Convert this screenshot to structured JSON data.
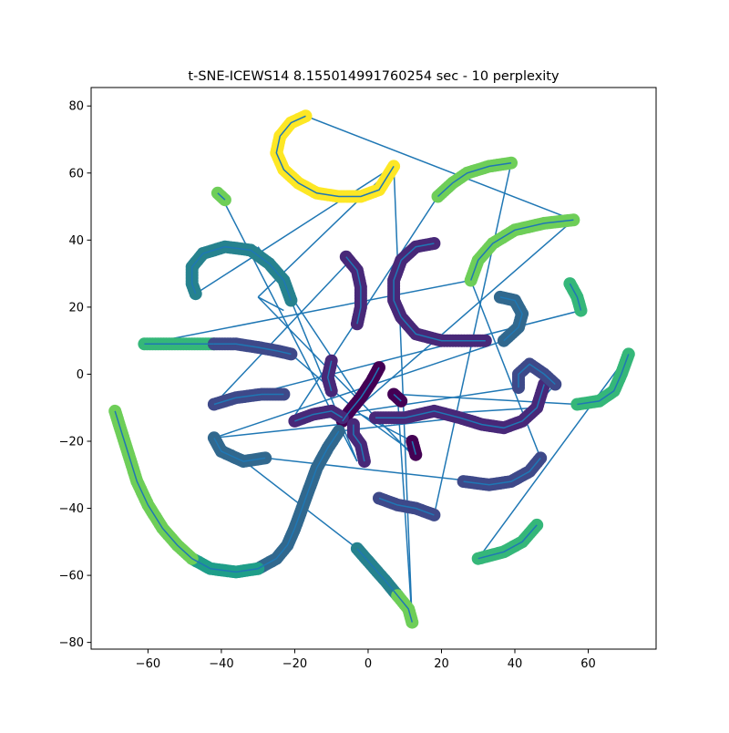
{
  "chart_data": {
    "type": "scatter",
    "title": "t-SNE-ICEWS14 8.155014991760254 sec  - 10 perplexity",
    "xlabel": "",
    "ylabel": "",
    "xlim": [
      -75.5,
      78.5
    ],
    "ylim": [
      -82,
      85.5
    ],
    "xticks": [
      -60,
      -40,
      -20,
      0,
      20,
      40,
      60
    ],
    "yticks": [
      -80,
      -60,
      -40,
      -20,
      0,
      20,
      40,
      60,
      80
    ],
    "grid": false,
    "legend": "none",
    "line_color": "#1f77b4",
    "colormap": "viridis",
    "colors": {
      "v0": "#440154",
      "v1": "#482878",
      "v2": "#3e4989",
      "v3": "#31688e",
      "v4": "#26828e",
      "v5": "#1f9e89",
      "v6": "#35b779",
      "v7": "#6ece58",
      "v8": "#b5de2b",
      "v9": "#fde725"
    },
    "series": [
      {
        "c": 9,
        "points": [
          [
            -17,
            77
          ],
          [
            -21,
            75
          ],
          [
            -24,
            71
          ],
          [
            -25,
            66
          ],
          [
            -23,
            61
          ],
          [
            -19,
            57
          ],
          [
            -14,
            54
          ],
          [
            -8,
            53
          ],
          [
            -2,
            53
          ],
          [
            3,
            55
          ],
          [
            7,
            62
          ]
        ]
      },
      {
        "c": 7,
        "points": [
          [
            39,
            63
          ],
          [
            33,
            62
          ],
          [
            27,
            60
          ],
          [
            23,
            57
          ],
          [
            19,
            53
          ]
        ]
      },
      {
        "c": 7,
        "points": [
          [
            56,
            46
          ],
          [
            48,
            45
          ],
          [
            40,
            43
          ],
          [
            34,
            39
          ],
          [
            30,
            34
          ],
          [
            28,
            28
          ]
        ]
      },
      {
        "c": 6,
        "points": [
          [
            55,
            27
          ],
          [
            57,
            23
          ],
          [
            58,
            19
          ]
        ]
      },
      {
        "c": 7,
        "points": [
          [
            -41,
            54
          ],
          [
            -39,
            52
          ]
        ]
      },
      {
        "c": 4,
        "points": [
          [
            -21,
            22
          ],
          [
            -23,
            28
          ],
          [
            -27,
            33
          ],
          [
            -32,
            37
          ],
          [
            -39,
            38
          ],
          [
            -45,
            36
          ],
          [
            -48,
            32
          ],
          [
            -48,
            27
          ],
          [
            -47,
            24
          ]
        ]
      },
      {
        "c": 1,
        "points": [
          [
            -3,
            15
          ],
          [
            -2,
            20
          ],
          [
            -2,
            26
          ],
          [
            -3,
            31
          ],
          [
            -6,
            35
          ]
        ]
      },
      {
        "c": 1,
        "points": [
          [
            18,
            39
          ],
          [
            13,
            38
          ],
          [
            9,
            34
          ],
          [
            7,
            28
          ],
          [
            7,
            22
          ],
          [
            9,
            17
          ],
          [
            13,
            12
          ],
          [
            20,
            10
          ],
          [
            27,
            10
          ],
          [
            32,
            10
          ]
        ]
      },
      {
        "c": 3,
        "points": [
          [
            36,
            23
          ],
          [
            40,
            22
          ],
          [
            42,
            18
          ],
          [
            41,
            14
          ],
          [
            37,
            10
          ]
        ]
      },
      {
        "c": 6,
        "points": [
          [
            -61,
            9
          ],
          [
            -55,
            9
          ],
          [
            -48,
            9
          ],
          [
            -42,
            9
          ]
        ]
      },
      {
        "c": 2,
        "points": [
          [
            -42,
            9
          ],
          [
            -36,
            9
          ],
          [
            -30,
            8
          ],
          [
            -25,
            7
          ],
          [
            -21,
            6
          ]
        ]
      },
      {
        "c": 1,
        "points": [
          [
            -10,
            4
          ],
          [
            -11,
            -1
          ],
          [
            -10,
            -5
          ]
        ]
      },
      {
        "c": 0,
        "points": [
          [
            3,
            2
          ],
          [
            1,
            -2
          ],
          [
            -2,
            -7
          ],
          [
            -5,
            -11
          ],
          [
            -7,
            -14
          ]
        ]
      },
      {
        "c": 0,
        "points": [
          [
            7,
            -6
          ],
          [
            9,
            -8
          ]
        ]
      },
      {
        "c": 2,
        "points": [
          [
            -42,
            -9
          ],
          [
            -36,
            -7
          ],
          [
            -29,
            -6
          ],
          [
            -23,
            -6
          ]
        ]
      },
      {
        "c": 1,
        "points": [
          [
            -20,
            -14
          ],
          [
            -15,
            -12
          ],
          [
            -10,
            -11
          ],
          [
            -7,
            -13
          ]
        ]
      },
      {
        "c": 1,
        "points": [
          [
            2,
            -13
          ],
          [
            10,
            -13
          ],
          [
            18,
            -11
          ],
          [
            25,
            -13
          ],
          [
            31,
            -15
          ],
          [
            37,
            -16
          ],
          [
            42,
            -14
          ],
          [
            46,
            -10
          ],
          [
            48,
            -3
          ]
        ]
      },
      {
        "c": 2,
        "points": [
          [
            41,
            -4
          ],
          [
            41,
            0
          ],
          [
            44,
            3
          ],
          [
            48,
            0
          ],
          [
            51,
            -3
          ]
        ]
      },
      {
        "c": 6,
        "points": [
          [
            57,
            -9
          ],
          [
            63,
            -8
          ],
          [
            67,
            -5
          ],
          [
            69,
            0
          ],
          [
            71,
            6
          ]
        ]
      },
      {
        "c": 3,
        "points": [
          [
            -42,
            -19
          ],
          [
            -40,
            -23
          ],
          [
            -34,
            -26
          ],
          [
            -28,
            -25
          ]
        ]
      },
      {
        "c": 1,
        "points": [
          [
            -1,
            -26
          ],
          [
            -2,
            -21
          ],
          [
            -4,
            -18
          ],
          [
            -4,
            -15
          ]
        ]
      },
      {
        "c": 0,
        "points": [
          [
            12,
            -20
          ],
          [
            13,
            -24
          ]
        ]
      },
      {
        "c": 2,
        "points": [
          [
            47,
            -25
          ],
          [
            44,
            -29
          ],
          [
            39,
            -32
          ],
          [
            33,
            -33
          ],
          [
            26,
            -32
          ]
        ]
      },
      {
        "c": 3,
        "points": [
          [
            -8,
            -17
          ],
          [
            -11,
            -22
          ],
          [
            -14,
            -28
          ],
          [
            -16,
            -34
          ],
          [
            -18,
            -40
          ],
          [
            -20,
            -46
          ],
          [
            -22,
            -51
          ],
          [
            -25,
            -55
          ],
          [
            -30,
            -58
          ]
        ]
      },
      {
        "c": 5,
        "points": [
          [
            -30,
            -58
          ],
          [
            -36,
            -59
          ],
          [
            -43,
            -58
          ],
          [
            -48,
            -55
          ]
        ]
      },
      {
        "c": 7,
        "points": [
          [
            -48,
            -55
          ],
          [
            -52,
            -51
          ],
          [
            -56,
            -46
          ],
          [
            -60,
            -39
          ],
          [
            -63,
            -32
          ],
          [
            -65,
            -25
          ],
          [
            -67,
            -18
          ],
          [
            -69,
            -11
          ]
        ]
      },
      {
        "c": 2,
        "points": [
          [
            3,
            -37
          ],
          [
            8,
            -39
          ],
          [
            13,
            -40
          ],
          [
            18,
            -42
          ]
        ]
      },
      {
        "c": 6,
        "points": [
          [
            46,
            -45
          ],
          [
            42,
            -50
          ],
          [
            37,
            -53
          ],
          [
            30,
            -55
          ]
        ]
      },
      {
        "c": 4,
        "points": [
          [
            -3,
            -52
          ],
          [
            1,
            -57
          ],
          [
            5,
            -62
          ],
          [
            8,
            -66
          ]
        ]
      },
      {
        "c": 7,
        "points": [
          [
            8,
            -66
          ],
          [
            11,
            -70
          ],
          [
            12,
            -74
          ]
        ]
      }
    ],
    "links": [
      [
        [
          -17,
          77
        ],
        [
          56,
          46
        ]
      ],
      [
        [
          7,
          62
        ],
        [
          -47,
          24
        ]
      ],
      [
        [
          7,
          62
        ],
        [
          12,
          -74
        ]
      ],
      [
        [
          7,
          62
        ],
        [
          -30,
          23
        ]
      ],
      [
        [
          -40,
          53
        ],
        [
          -3,
          -26
        ]
      ],
      [
        [
          -30,
          38
        ],
        [
          -2,
          -8
        ]
      ],
      [
        [
          19,
          53
        ],
        [
          -21,
          -14
        ]
      ],
      [
        [
          39,
          63
        ],
        [
          18,
          -42
        ]
      ],
      [
        [
          56,
          46
        ],
        [
          -7,
          -14
        ]
      ],
      [
        [
          28,
          28
        ],
        [
          47,
          -25
        ]
      ],
      [
        [
          -61,
          9
        ],
        [
          28,
          28
        ]
      ],
      [
        [
          -30,
          23
        ],
        [
          12,
          -24
        ]
      ],
      [
        [
          -42,
          -9
        ],
        [
          -4,
          35
        ]
      ],
      [
        [
          -42,
          -9
        ],
        [
          58,
          19
        ]
      ],
      [
        [
          -42,
          -19
        ],
        [
          37,
          10
        ]
      ],
      [
        [
          -42,
          -19
        ],
        [
          -8,
          -15
        ]
      ],
      [
        [
          71,
          6
        ],
        [
          30,
          -55
        ]
      ],
      [
        [
          -21,
          22
        ],
        [
          -3,
          -26
        ]
      ],
      [
        [
          8,
          -6
        ],
        [
          57,
          -9
        ]
      ],
      [
        [
          46,
          -10
        ],
        [
          2,
          -13
        ]
      ],
      [
        [
          41,
          -4
        ],
        [
          -20,
          -14
        ]
      ],
      [
        [
          -28,
          -25
        ],
        [
          29,
          -32
        ]
      ],
      [
        [
          -8,
          -17
        ],
        [
          25,
          -13
        ]
      ],
      [
        [
          -3,
          -52
        ],
        [
          -42,
          -19
        ]
      ],
      [
        [
          12,
          -74
        ],
        [
          8,
          -6
        ]
      ],
      [
        [
          13,
          -24
        ],
        [
          -2,
          -12
        ]
      ],
      [
        [
          -21,
          6
        ],
        [
          -2,
          -12
        ]
      ],
      [
        [
          -2,
          -12
        ],
        [
          12,
          -20
        ]
      ],
      [
        [
          -30,
          23
        ],
        [
          -23,
          19
        ]
      ],
      [
        [
          -21,
          -14
        ],
        [
          -2,
          -12
        ]
      ],
      [
        [
          -10,
          4
        ],
        [
          -10,
          -5
        ]
      ],
      [
        [
          42,
          -14
        ],
        [
          51,
          -3
        ]
      ]
    ]
  }
}
